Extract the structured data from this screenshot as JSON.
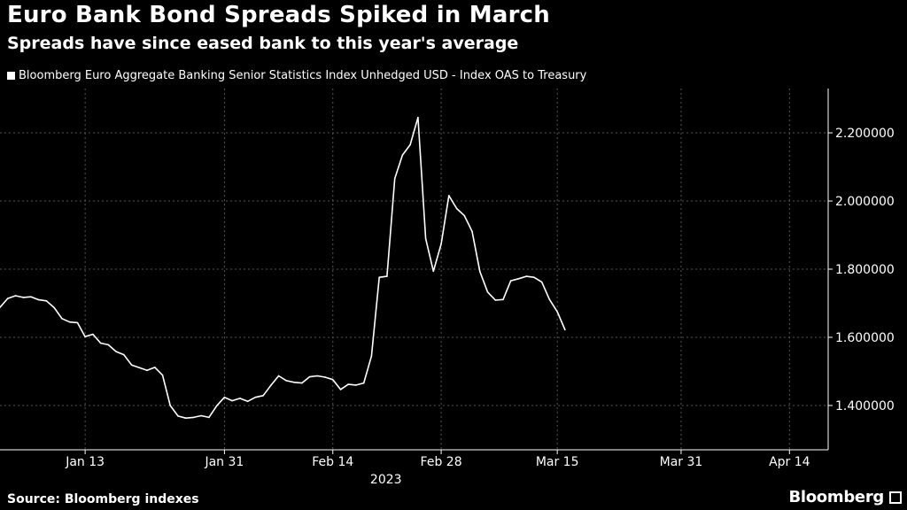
{
  "header": {
    "title": "Euro Bank Bond Spreads Spiked in March",
    "subtitle": "Spreads have since eased bank to this year's average"
  },
  "footer": {
    "source": "Source: Bloomberg indexes",
    "brand": "Bloomberg"
  },
  "colors": {
    "background": "#000000",
    "line": "#ffffff",
    "grid": "#555555",
    "text": "#ffffff"
  },
  "chart_data": {
    "type": "line",
    "title": "Euro Bank Bond Spreads Spiked in March",
    "subtitle": "Spreads have since eased bank to this year's average",
    "xlabel": "2023",
    "ylabel": "",
    "grid": true,
    "grid_style": "dotted",
    "legend_position": "top-left",
    "y_axis_side": "right",
    "ylim": [
      1.27,
      2.33
    ],
    "xlim": [
      "2023-01-02",
      "2023-04-19"
    ],
    "x_ticks": [
      {
        "date": "2023-01-13",
        "label": "Jan 13"
      },
      {
        "date": "2023-01-31",
        "label": "Jan 31"
      },
      {
        "date": "2023-02-14",
        "label": "Feb 14"
      },
      {
        "date": "2023-02-28",
        "label": "Feb 28"
      },
      {
        "date": "2023-03-15",
        "label": "Mar 15"
      },
      {
        "date": "2023-03-31",
        "label": "Mar 31"
      },
      {
        "date": "2023-04-14",
        "label": "Apr 14"
      }
    ],
    "y_ticks": [
      {
        "value": 1.4,
        "label": "1.400000"
      },
      {
        "value": 1.6,
        "label": "1.600000"
      },
      {
        "value": 1.8,
        "label": "1.800000"
      },
      {
        "value": 2.0,
        "label": "2.000000"
      },
      {
        "value": 2.2,
        "label": "2.200000"
      }
    ],
    "series": [
      {
        "name": "Bloomberg Euro Aggregate Banking Senior Statistics Index Unhedged USD - Index OAS to Treasury",
        "color": "#ffffff",
        "points": [
          {
            "x": "2023-01-02",
            "y": 1.688
          },
          {
            "x": "2023-01-03",
            "y": 1.714
          },
          {
            "x": "2023-01-04",
            "y": 1.722
          },
          {
            "x": "2023-01-05",
            "y": 1.717
          },
          {
            "x": "2023-01-06",
            "y": 1.719
          },
          {
            "x": "2023-01-07",
            "y": 1.71
          },
          {
            "x": "2023-01-08",
            "y": 1.707
          },
          {
            "x": "2023-01-09",
            "y": 1.687
          },
          {
            "x": "2023-01-10",
            "y": 1.655
          },
          {
            "x": "2023-01-11",
            "y": 1.645
          },
          {
            "x": "2023-01-12",
            "y": 1.643
          },
          {
            "x": "2023-01-13",
            "y": 1.602
          },
          {
            "x": "2023-01-14",
            "y": 1.609
          },
          {
            "x": "2023-01-15",
            "y": 1.583
          },
          {
            "x": "2023-01-16",
            "y": 1.578
          },
          {
            "x": "2023-01-17",
            "y": 1.558
          },
          {
            "x": "2023-01-18",
            "y": 1.549
          },
          {
            "x": "2023-01-19",
            "y": 1.519
          },
          {
            "x": "2023-01-20",
            "y": 1.511
          },
          {
            "x": "2023-01-21",
            "y": 1.503
          },
          {
            "x": "2023-01-22",
            "y": 1.512
          },
          {
            "x": "2023-01-23",
            "y": 1.489
          },
          {
            "x": "2023-01-24",
            "y": 1.4
          },
          {
            "x": "2023-01-25",
            "y": 1.369
          },
          {
            "x": "2023-01-26",
            "y": 1.363
          },
          {
            "x": "2023-01-27",
            "y": 1.365
          },
          {
            "x": "2023-01-28",
            "y": 1.37
          },
          {
            "x": "2023-01-29",
            "y": 1.365
          },
          {
            "x": "2023-01-30",
            "y": 1.399
          },
          {
            "x": "2023-01-31",
            "y": 1.424
          },
          {
            "x": "2023-02-01",
            "y": 1.414
          },
          {
            "x": "2023-02-02",
            "y": 1.421
          },
          {
            "x": "2023-02-03",
            "y": 1.412
          },
          {
            "x": "2023-02-04",
            "y": 1.424
          },
          {
            "x": "2023-02-05",
            "y": 1.429
          },
          {
            "x": "2023-02-06",
            "y": 1.459
          },
          {
            "x": "2023-02-07",
            "y": 1.487
          },
          {
            "x": "2023-02-08",
            "y": 1.473
          },
          {
            "x": "2023-02-09",
            "y": 1.468
          },
          {
            "x": "2023-02-10",
            "y": 1.466
          },
          {
            "x": "2023-02-11",
            "y": 1.484
          },
          {
            "x": "2023-02-12",
            "y": 1.487
          },
          {
            "x": "2023-02-13",
            "y": 1.483
          },
          {
            "x": "2023-02-14",
            "y": 1.476
          },
          {
            "x": "2023-02-15",
            "y": 1.447
          },
          {
            "x": "2023-02-16",
            "y": 1.462
          },
          {
            "x": "2023-02-17",
            "y": 1.46
          },
          {
            "x": "2023-02-18",
            "y": 1.466
          },
          {
            "x": "2023-02-19",
            "y": 1.545
          },
          {
            "x": "2023-02-20",
            "y": 1.776
          },
          {
            "x": "2023-02-21",
            "y": 1.779
          },
          {
            "x": "2023-02-22",
            "y": 2.066
          },
          {
            "x": "2023-02-23",
            "y": 2.135
          },
          {
            "x": "2023-02-24",
            "y": 2.165
          },
          {
            "x": "2023-02-25",
            "y": 2.245
          },
          {
            "x": "2023-02-26",
            "y": 1.89
          },
          {
            "x": "2023-02-27",
            "y": 1.794
          },
          {
            "x": "2023-02-28",
            "y": 1.874
          },
          {
            "x": "2023-03-01",
            "y": 2.016
          },
          {
            "x": "2023-03-02",
            "y": 1.978
          },
          {
            "x": "2023-03-03",
            "y": 1.957
          },
          {
            "x": "2023-03-04",
            "y": 1.911
          },
          {
            "x": "2023-03-05",
            "y": 1.793
          },
          {
            "x": "2023-03-06",
            "y": 1.733
          },
          {
            "x": "2023-03-07",
            "y": 1.709
          },
          {
            "x": "2023-03-08",
            "y": 1.711
          },
          {
            "x": "2023-03-09",
            "y": 1.766
          },
          {
            "x": "2023-03-10",
            "y": 1.772
          },
          {
            "x": "2023-03-11",
            "y": 1.779
          },
          {
            "x": "2023-03-12",
            "y": 1.776
          },
          {
            "x": "2023-03-13",
            "y": 1.762
          },
          {
            "x": "2023-03-14",
            "y": 1.711
          },
          {
            "x": "2023-03-15",
            "y": 1.675
          },
          {
            "x": "2023-03-16",
            "y": 1.622
          }
        ]
      }
    ]
  }
}
